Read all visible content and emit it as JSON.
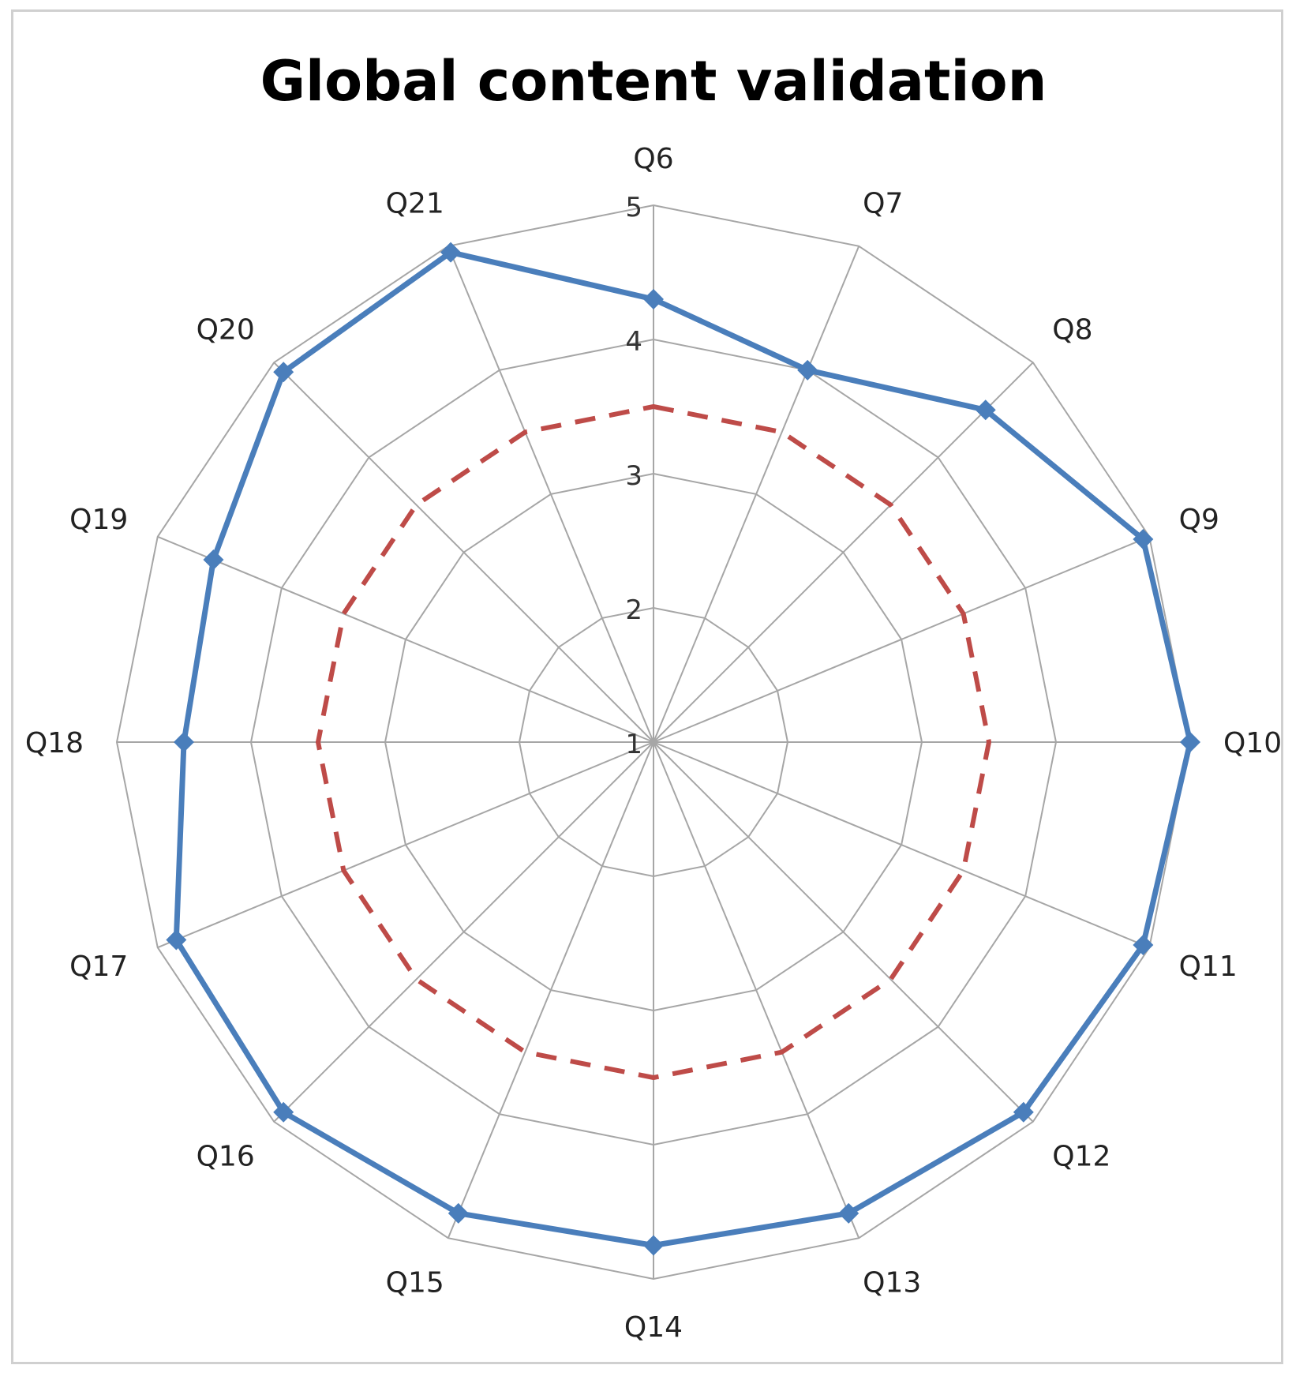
{
  "chart_data": {
    "type": "radar",
    "title": "Global content validation",
    "categories": [
      "Q6",
      "Q7",
      "Q8",
      "Q9",
      "Q10",
      "Q11",
      "Q12",
      "Q13",
      "Q14",
      "Q15",
      "Q16",
      "Q17",
      "Q18",
      "Q19",
      "Q20",
      "Q21"
    ],
    "series": [
      {
        "values": [
          4.3,
          4.0,
          4.5,
          4.95,
          5.0,
          4.95,
          4.9,
          4.8,
          4.75,
          4.8,
          4.9,
          4.85,
          4.5,
          4.55,
          4.9,
          4.95
        ],
        "color": "#4a7ebb",
        "style": "solid",
        "marker": "diamond"
      },
      {
        "values": [
          3.5,
          3.5,
          3.5,
          3.5,
          3.5,
          3.5,
          3.5,
          3.5,
          3.5,
          3.5,
          3.5,
          3.5,
          3.5,
          3.5,
          3.5,
          3.5
        ],
        "color": "#be4b48",
        "style": "dashed",
        "marker": "none"
      }
    ],
    "rlim": [
      1,
      5
    ],
    "ticks": [
      "1",
      "2",
      "3",
      "4",
      "5"
    ],
    "tick_values": [
      1,
      2,
      3,
      4,
      5
    ],
    "grid": true,
    "legend": "none"
  }
}
